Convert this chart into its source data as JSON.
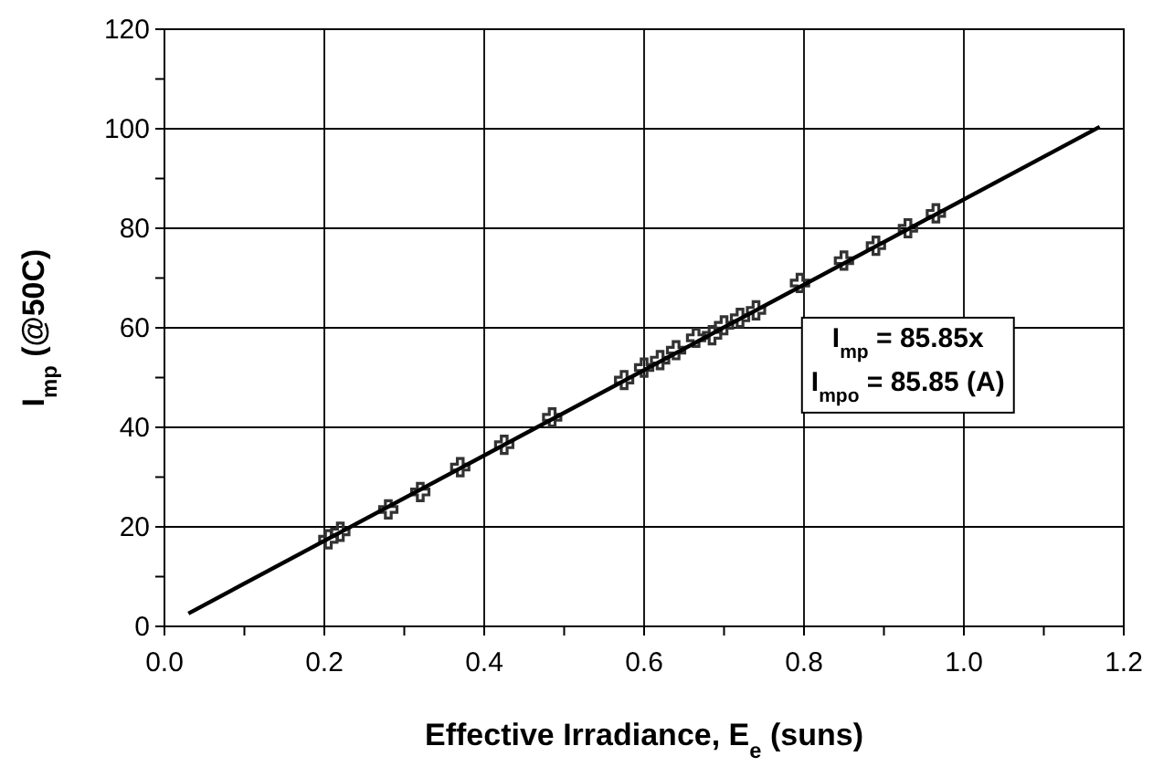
{
  "chart_data": {
    "type": "scatter",
    "xlabel": "Effective Irradiance, E$_{e}$ (suns)",
    "ylabel": "I$_{mp}$ (@50C)",
    "xlim": [
      0,
      1.2
    ],
    "ylim": [
      0,
      120
    ],
    "xticks": [
      {
        "value": 0,
        "label": "0.0"
      },
      {
        "value": 0.1,
        "label": null
      },
      {
        "value": 0.2,
        "label": "0.2"
      },
      {
        "value": 0.3,
        "label": null
      },
      {
        "value": 0.4,
        "label": "0.4"
      },
      {
        "value": 0.5,
        "label": null
      },
      {
        "value": 0.6,
        "label": "0.6"
      },
      {
        "value": 0.7,
        "label": null
      },
      {
        "value": 0.8,
        "label": "0.8"
      },
      {
        "value": 0.9,
        "label": null
      },
      {
        "value": 1,
        "label": "1.0"
      },
      {
        "value": 1.1,
        "label": null
      },
      {
        "value": 1.2,
        "label": "1.2"
      }
    ],
    "yticks": [
      0,
      {
        "value": 10,
        "label": null
      },
      20,
      {
        "value": 30,
        "label": null
      },
      40,
      {
        "value": 50,
        "label": null
      },
      60,
      {
        "value": 70,
        "label": null
      },
      80,
      {
        "value": 90,
        "label": null
      },
      100,
      {
        "value": 110,
        "label": null
      },
      120
    ],
    "grid": true,
    "series": [
      {
        "color": "#333333",
        "marker": "cross",
        "x": [
          0.205,
          0.22,
          0.28,
          0.32,
          0.37,
          0.425,
          0.485,
          0.575,
          0.6,
          0.62,
          0.64,
          0.665,
          0.685,
          0.7,
          0.72,
          0.74,
          0.795,
          0.85,
          0.89,
          0.93,
          0.965
        ],
        "values": [
          17.5,
          19,
          23.5,
          27,
          32,
          36.5,
          42,
          49.5,
          52,
          53.5,
          55.5,
          58,
          58.5,
          60.5,
          62,
          63.5,
          69,
          73.5,
          76.5,
          80,
          83
        ]
      },
      {
        "type": "line",
        "color": "#000000",
        "x": [
          0.03,
          1.17
        ],
        "values": [
          2.6,
          100.4
        ]
      }
    ],
    "annotations": [
      "I$_{mp}$ = 85.85x",
      "I$_{mpo}$ = 85.85 (A)"
    ]
  }
}
